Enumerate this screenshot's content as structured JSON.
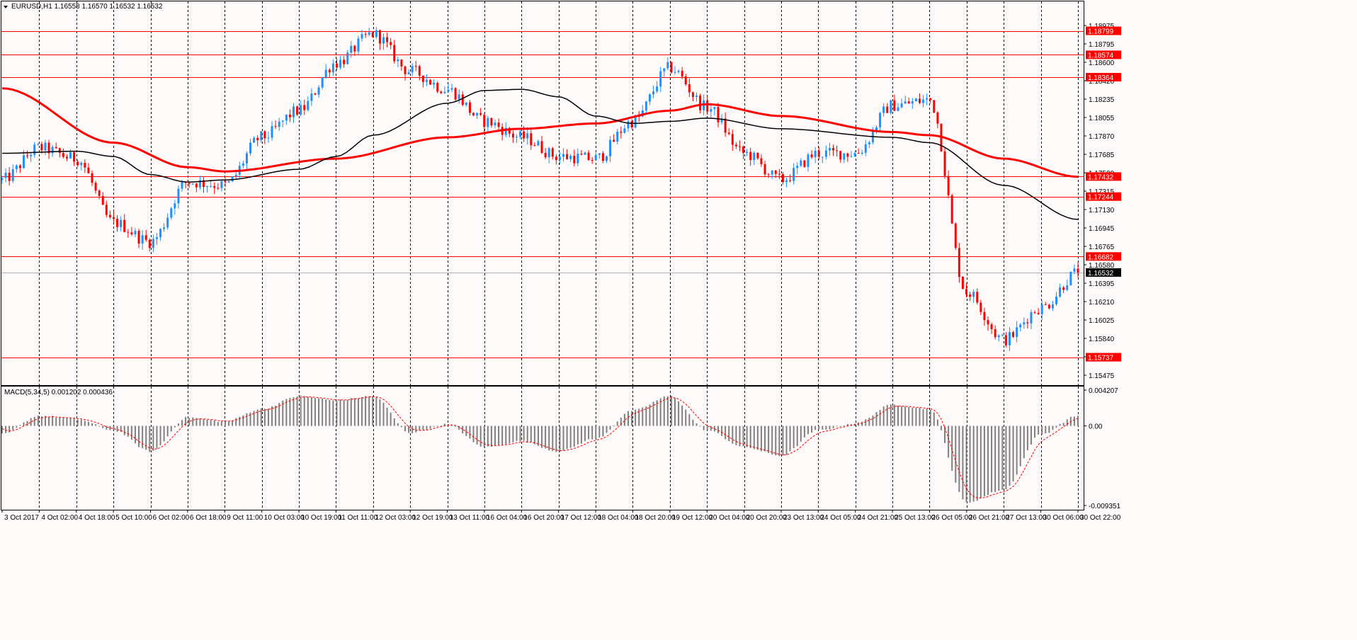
{
  "app": {
    "symbol_header": "EURUSD,H1  1.16558 1.16570 1.16532 1.16532",
    "indicator_header": "MACD(5,34,5) 0.001202 0.000436"
  },
  "colors": {
    "background": "#fffafa",
    "frame": "#000000",
    "bull": "#1e90ff",
    "bear": "#ff0000",
    "ma_slow": "#ff0000",
    "ma_fast": "#000000",
    "hline": "#ff0000",
    "tag_bg": "#ff0000",
    "current_tag_bg": "#000000",
    "macd_hist": "#808080",
    "macd_signal": "#ff0000"
  },
  "price_axis": {
    "ticks": [
      "1.18975",
      "1.18795",
      "1.18600",
      "1.18420",
      "1.18235",
      "1.18055",
      "1.17870",
      "1.17685",
      "1.17500",
      "1.17315",
      "1.17130",
      "1.16945",
      "1.16765",
      "1.16580",
      "1.16395",
      "1.16210",
      "1.16025",
      "1.15840",
      "1.15660",
      "1.15475"
    ]
  },
  "levels": {
    "lines": [
      "1.18799",
      "1.18574",
      "1.18364",
      "1.17432",
      "1.17244",
      "1.16682",
      "1.15737"
    ],
    "current": "1.16532"
  },
  "macd_axis": {
    "ticks": [
      "0.004207",
      "0.00",
      "-0.009351"
    ]
  },
  "time_axis": {
    "labels": [
      "3 Oct 2017",
      "4 Oct 02:00",
      "4 Oct 18:00",
      "5 Oct 10:00",
      "6 Oct 02:00",
      "6 Oct 18:00",
      "9 Oct 11:00",
      "10 Oct 03:00",
      "10 Oct 19:00",
      "11 Oct 11:00",
      "12 Oct 03:00",
      "12 Oct 19:00",
      "13 Oct 11:00",
      "16 Oct 04:00",
      "16 Oct 20:00",
      "17 Oct 12:00",
      "18 Oct 04:00",
      "18 Oct 20:00",
      "19 Oct 12:00",
      "20 Oct 04:00",
      "20 Oct 20:00",
      "23 Oct 13:00",
      "24 Oct 05:00",
      "24 Oct 21:00",
      "25 Oct 13:00",
      "26 Oct 05:00",
      "26 Oct 21:00",
      "27 Oct 13:00",
      "30 Oct 06:00",
      "30 Oct 22:00"
    ]
  },
  "chart_data": [
    {
      "type": "candlestick",
      "title": "EURUSD,H1",
      "ohlc_current": {
        "open": 1.16558,
        "high": 1.1657,
        "low": 1.16532,
        "close": 1.16532
      },
      "ylim": [
        1.15475,
        1.19075
      ],
      "grid": "vertical dashed",
      "horizontal_levels": [
        1.18799,
        1.18574,
        1.18364,
        1.17432,
        1.17244,
        1.16682,
        1.15737
      ],
      "close_path_anchors": [
        {
          "x": "3 Oct 2017",
          "y": 1.174
        },
        {
          "x": "4 Oct 02:00",
          "y": 1.177
        },
        {
          "x": "4 Oct 18:00",
          "y": 1.176
        },
        {
          "x": "5 Oct 10:00",
          "y": 1.17
        },
        {
          "x": "6 Oct 02:00",
          "y": 1.1682
        },
        {
          "x": "6 Oct 18:00",
          "y": 1.1738
        },
        {
          "x": "9 Oct 11:00",
          "y": 1.1735
        },
        {
          "x": "10 Oct 03:00",
          "y": 1.178
        },
        {
          "x": "10 Oct 19:00",
          "y": 1.1805
        },
        {
          "x": "11 Oct 11:00",
          "y": 1.185
        },
        {
          "x": "12 Oct 03:00",
          "y": 1.1877
        },
        {
          "x": "12 Oct 19:00",
          "y": 1.1842
        },
        {
          "x": "13 Oct 11:00",
          "y": 1.1825
        },
        {
          "x": "16 Oct 04:00",
          "y": 1.1795
        },
        {
          "x": "16 Oct 20:00",
          "y": 1.178
        },
        {
          "x": "17 Oct 12:00",
          "y": 1.1762
        },
        {
          "x": "18 Oct 04:00",
          "y": 1.176
        },
        {
          "x": "18 Oct 20:00",
          "y": 1.1795
        },
        {
          "x": "19 Oct 12:00",
          "y": 1.1845
        },
        {
          "x": "20 Oct 04:00",
          "y": 1.1808
        },
        {
          "x": "20 Oct 20:00",
          "y": 1.1765
        },
        {
          "x": "23 Oct 13:00",
          "y": 1.174
        },
        {
          "x": "24 Oct 05:00",
          "y": 1.1765
        },
        {
          "x": "24 Oct 21:00",
          "y": 1.1765
        },
        {
          "x": "25 Oct 13:00",
          "y": 1.181
        },
        {
          "x": "26 Oct 05:00",
          "y": 1.1815
        },
        {
          "x": "26 Oct 21:00",
          "y": 1.1635
        },
        {
          "x": "27 Oct 13:00",
          "y": 1.159
        },
        {
          "x": "30 Oct 06:00",
          "y": 1.162
        },
        {
          "x": "30 Oct 22:00",
          "y": 1.1653
        }
      ],
      "ma_slow_anchors": [
        {
          "x": "3 Oct 2017",
          "y": 1.1826
        },
        {
          "x": "5 Oct 10:00",
          "y": 1.1775
        },
        {
          "x": "6 Oct 18:00",
          "y": 1.1752
        },
        {
          "x": "9 Oct 11:00",
          "y": 1.1748
        },
        {
          "x": "11 Oct 11:00",
          "y": 1.176
        },
        {
          "x": "13 Oct 11:00",
          "y": 1.178
        },
        {
          "x": "16 Oct 20:00",
          "y": 1.1788
        },
        {
          "x": "18 Oct 04:00",
          "y": 1.1793
        },
        {
          "x": "19 Oct 12:00",
          "y": 1.1805
        },
        {
          "x": "20 Oct 04:00",
          "y": 1.1811
        },
        {
          "x": "23 Oct 13:00",
          "y": 1.18
        },
        {
          "x": "25 Oct 13:00",
          "y": 1.1785
        },
        {
          "x": "26 Oct 05:00",
          "y": 1.1782
        },
        {
          "x": "27 Oct 13:00",
          "y": 1.176
        },
        {
          "x": "30 Oct 22:00",
          "y": 1.1743
        }
      ],
      "ma_fast_anchors": [
        {
          "x": "3 Oct 2017",
          "y": 1.1765
        },
        {
          "x": "4 Oct 18:00",
          "y": 1.1767
        },
        {
          "x": "5 Oct 10:00",
          "y": 1.1762
        },
        {
          "x": "6 Oct 02:00",
          "y": 1.1745
        },
        {
          "x": "6 Oct 18:00",
          "y": 1.1738
        },
        {
          "x": "9 Oct 11:00",
          "y": 1.174
        },
        {
          "x": "10 Oct 19:00",
          "y": 1.175
        },
        {
          "x": "11 Oct 11:00",
          "y": 1.1762
        },
        {
          "x": "12 Oct 03:00",
          "y": 1.1782
        },
        {
          "x": "13 Oct 11:00",
          "y": 1.1812
        },
        {
          "x": "16 Oct 04:00",
          "y": 1.1824
        },
        {
          "x": "16 Oct 20:00",
          "y": 1.1825
        },
        {
          "x": "17 Oct 12:00",
          "y": 1.1818
        },
        {
          "x": "18 Oct 04:00",
          "y": 1.18
        },
        {
          "x": "18 Oct 20:00",
          "y": 1.1793
        },
        {
          "x": "19 Oct 12:00",
          "y": 1.1795
        },
        {
          "x": "20 Oct 04:00",
          "y": 1.1798
        },
        {
          "x": "23 Oct 13:00",
          "y": 1.1788
        },
        {
          "x": "25 Oct 13:00",
          "y": 1.178
        },
        {
          "x": "26 Oct 05:00",
          "y": 1.1775
        },
        {
          "x": "27 Oct 13:00",
          "y": 1.1735
        },
        {
          "x": "30 Oct 22:00",
          "y": 1.1703
        }
      ]
    },
    {
      "type": "bar",
      "title": "MACD(5,34,5)",
      "values_current": {
        "macd": 0.001202,
        "signal": 0.000436
      },
      "ylim": [
        -0.009351,
        0.004207
      ],
      "hist_anchors": [
        {
          "x": "3 Oct 2017",
          "y": -0.001
        },
        {
          "x": "4 Oct 02:00",
          "y": 0.0012
        },
        {
          "x": "4 Oct 18:00",
          "y": 0.0008
        },
        {
          "x": "5 Oct 10:00",
          "y": -0.0005
        },
        {
          "x": "6 Oct 02:00",
          "y": -0.003
        },
        {
          "x": "6 Oct 18:00",
          "y": 0.001
        },
        {
          "x": "9 Oct 11:00",
          "y": 0.0005
        },
        {
          "x": "10 Oct 03:00",
          "y": 0.002
        },
        {
          "x": "10 Oct 19:00",
          "y": 0.0035
        },
        {
          "x": "11 Oct 11:00",
          "y": 0.003
        },
        {
          "x": "12 Oct 03:00",
          "y": 0.0035
        },
        {
          "x": "12 Oct 19:00",
          "y": -0.0008
        },
        {
          "x": "13 Oct 11:00",
          "y": 0.0002
        },
        {
          "x": "16 Oct 04:00",
          "y": -0.0025
        },
        {
          "x": "16 Oct 20:00",
          "y": -0.0018
        },
        {
          "x": "17 Oct 12:00",
          "y": -0.003
        },
        {
          "x": "18 Oct 04:00",
          "y": -0.0015
        },
        {
          "x": "18 Oct 20:00",
          "y": 0.0018
        },
        {
          "x": "19 Oct 12:00",
          "y": 0.0035
        },
        {
          "x": "20 Oct 04:00",
          "y": -0.0005
        },
        {
          "x": "20 Oct 20:00",
          "y": -0.0025
        },
        {
          "x": "23 Oct 13:00",
          "y": -0.0035
        },
        {
          "x": "24 Oct 05:00",
          "y": -0.0005
        },
        {
          "x": "24 Oct 21:00",
          "y": 0.0003
        },
        {
          "x": "25 Oct 13:00",
          "y": 0.0025
        },
        {
          "x": "26 Oct 05:00",
          "y": 0.002
        },
        {
          "x": "26 Oct 21:00",
          "y": -0.009
        },
        {
          "x": "27 Oct 13:00",
          "y": -0.0075
        },
        {
          "x": "30 Oct 06:00",
          "y": -0.001
        },
        {
          "x": "30 Oct 22:00",
          "y": 0.0012
        }
      ]
    }
  ]
}
